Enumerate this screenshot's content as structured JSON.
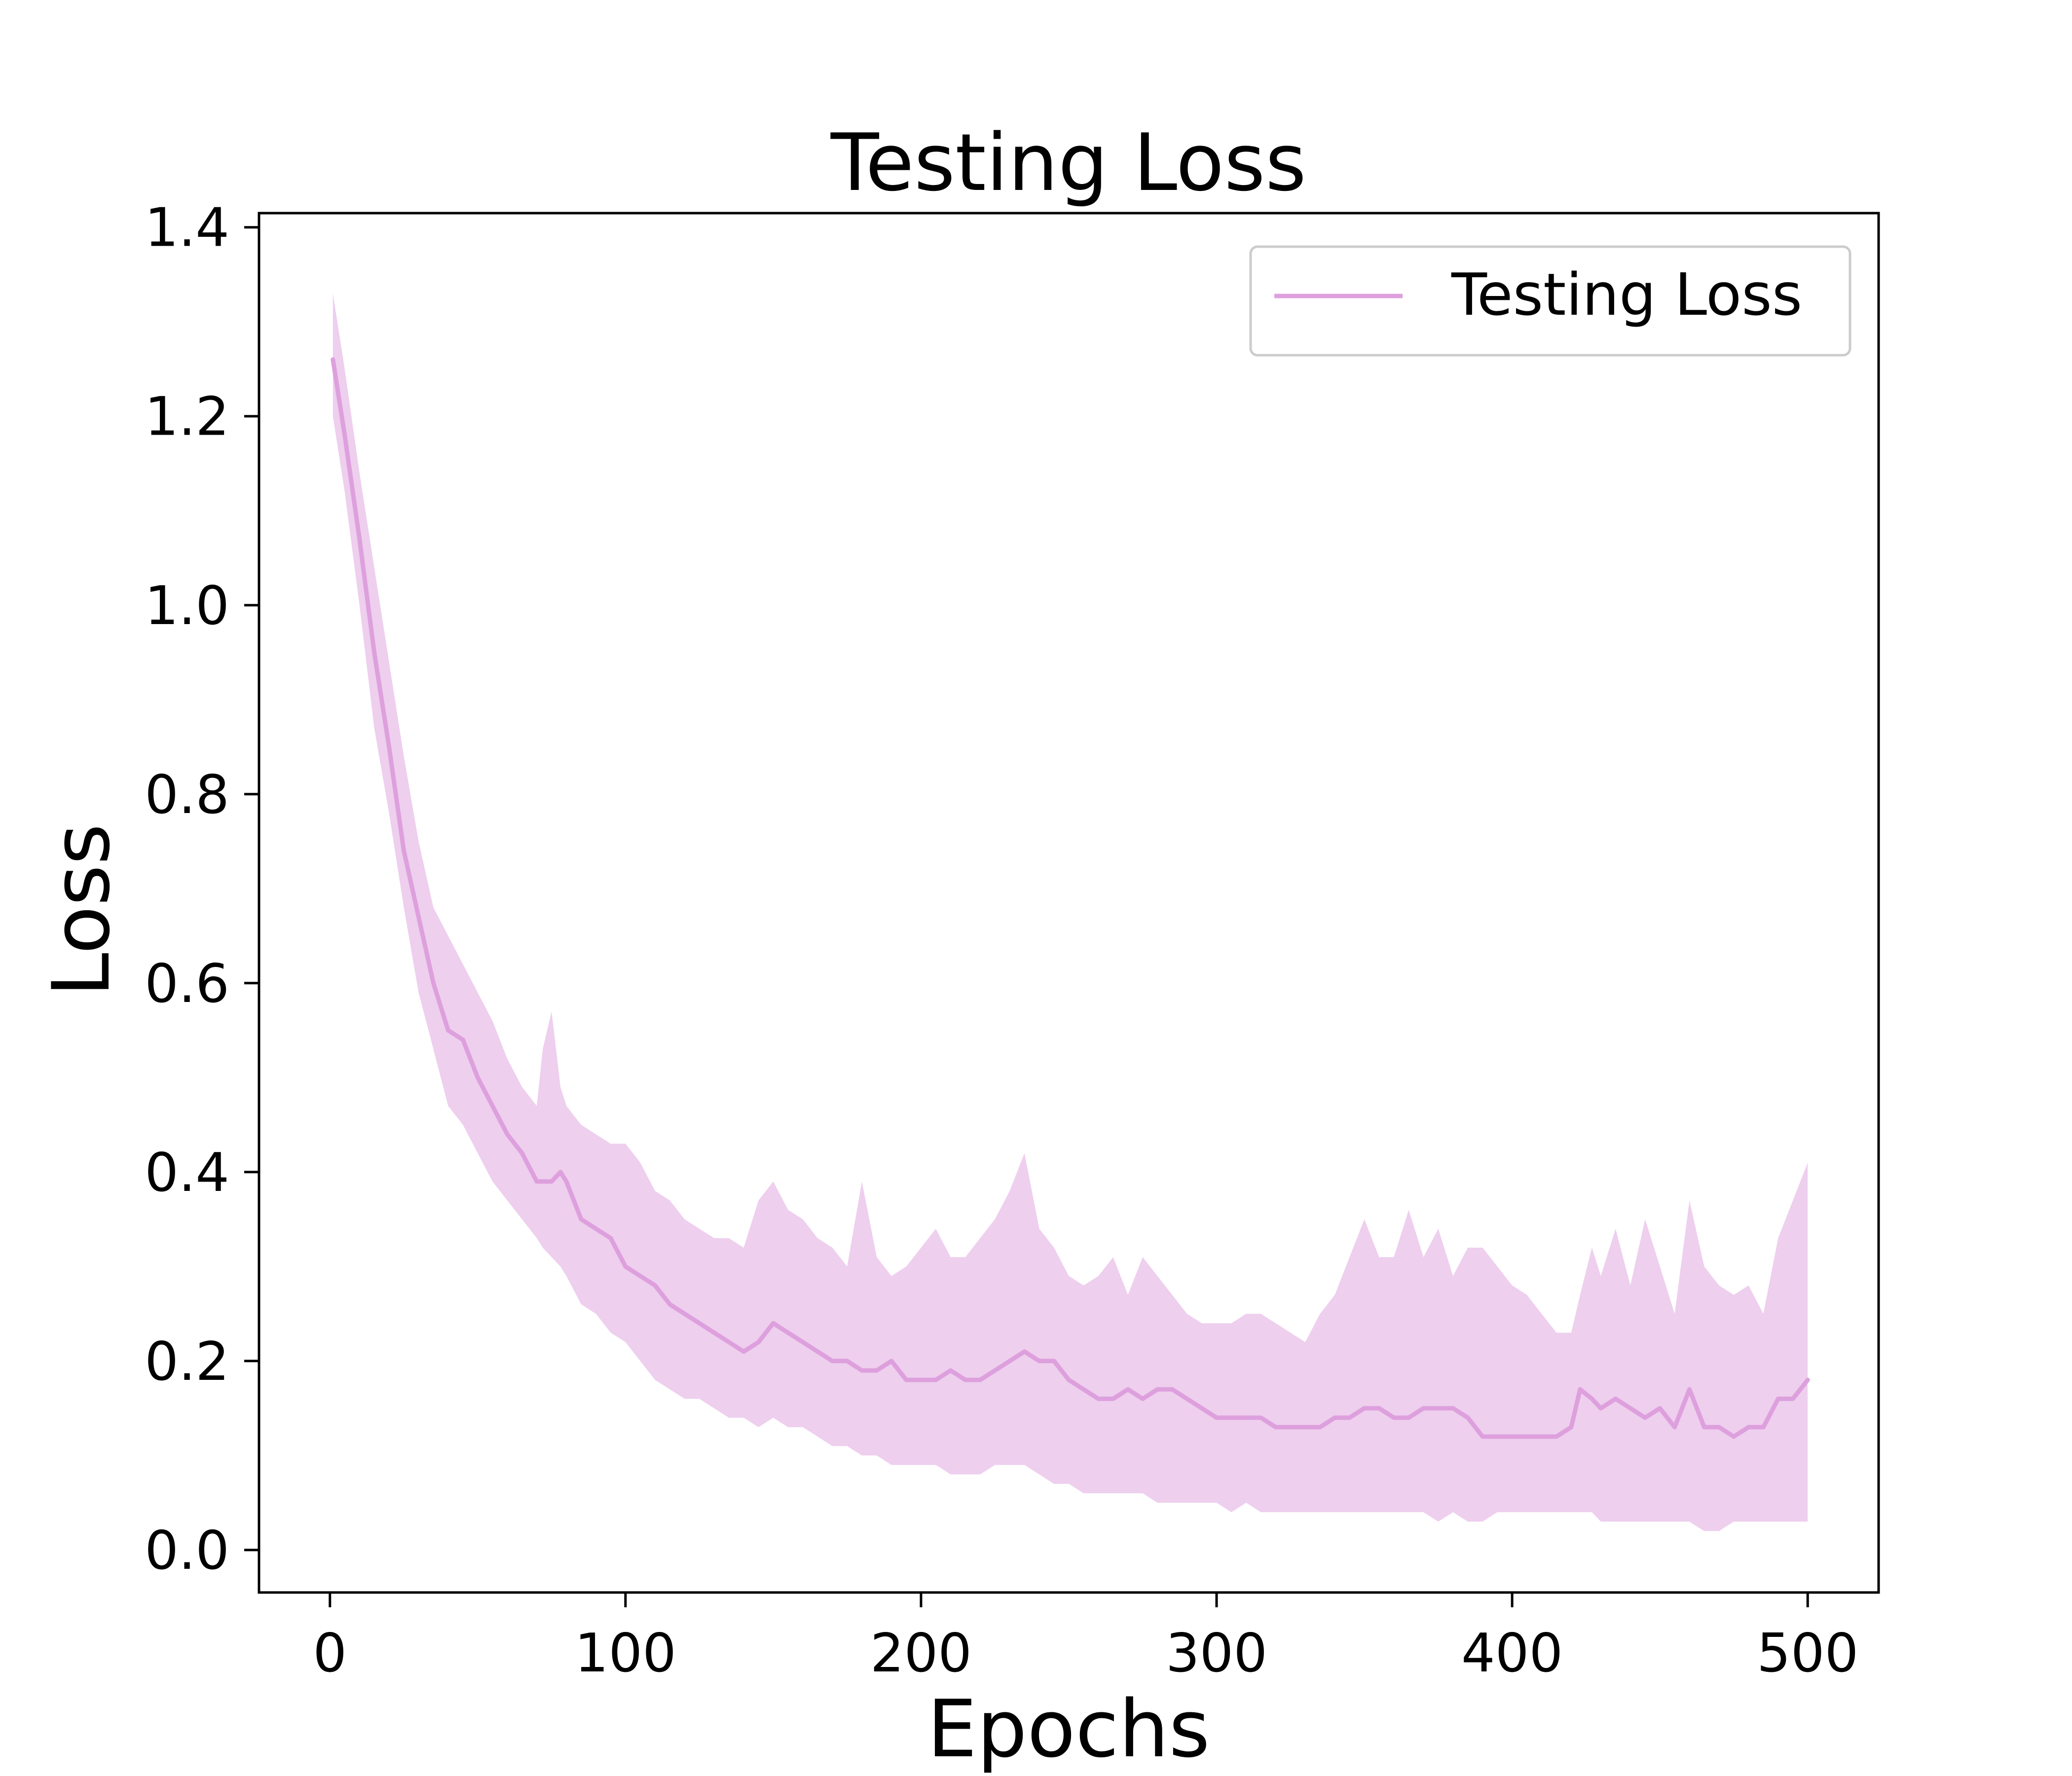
{
  "chart_data": {
    "type": "line",
    "title": "Testing Loss",
    "xlabel": "Epochs",
    "ylabel": "Loss",
    "xlim": [
      -24,
      524
    ],
    "ylim": [
      -0.045,
      1.415
    ],
    "xticks": [
      0,
      100,
      200,
      300,
      400,
      500
    ],
    "yticks": [
      0.0,
      0.2,
      0.4,
      0.6,
      0.8,
      1.0,
      1.2,
      1.4
    ],
    "xtick_labels": [
      "0",
      "100",
      "200",
      "300",
      "400",
      "500"
    ],
    "ytick_labels": [
      "0.0",
      "0.2",
      "0.4",
      "0.6",
      "0.8",
      "1.0",
      "1.2",
      "1.4"
    ],
    "grid": false,
    "legend_position": "top-right",
    "series": [
      {
        "name": "Testing Loss",
        "color": "#DDA0DD",
        "band_color": "#DDA0DD",
        "band_opacity": 0.5,
        "x": [
          1,
          5,
          10,
          15,
          20,
          25,
          30,
          35,
          40,
          45,
          50,
          55,
          60,
          65,
          70,
          72,
          75,
          78,
          80,
          85,
          90,
          95,
          100,
          105,
          110,
          115,
          120,
          125,
          130,
          135,
          140,
          145,
          150,
          155,
          160,
          165,
          170,
          175,
          180,
          185,
          190,
          195,
          200,
          205,
          210,
          215,
          220,
          225,
          230,
          235,
          240,
          245,
          250,
          255,
          260,
          265,
          270,
          275,
          280,
          285,
          290,
          295,
          300,
          305,
          310,
          315,
          320,
          325,
          330,
          335,
          340,
          345,
          350,
          355,
          360,
          365,
          370,
          375,
          380,
          385,
          390,
          395,
          400,
          405,
          410,
          415,
          420,
          423,
          427,
          430,
          435,
          440,
          445,
          450,
          455,
          460,
          465,
          470,
          475,
          480,
          485,
          490,
          495,
          500
        ],
        "y": [
          1.26,
          1.18,
          1.07,
          0.95,
          0.85,
          0.74,
          0.67,
          0.6,
          0.55,
          0.54,
          0.5,
          0.47,
          0.44,
          0.42,
          0.39,
          0.39,
          0.39,
          0.4,
          0.39,
          0.35,
          0.34,
          0.33,
          0.3,
          0.29,
          0.28,
          0.26,
          0.25,
          0.24,
          0.23,
          0.22,
          0.21,
          0.22,
          0.24,
          0.23,
          0.22,
          0.21,
          0.2,
          0.2,
          0.19,
          0.19,
          0.2,
          0.18,
          0.18,
          0.18,
          0.19,
          0.18,
          0.18,
          0.19,
          0.2,
          0.21,
          0.2,
          0.2,
          0.18,
          0.17,
          0.16,
          0.16,
          0.17,
          0.16,
          0.17,
          0.17,
          0.16,
          0.15,
          0.14,
          0.14,
          0.14,
          0.14,
          0.13,
          0.13,
          0.13,
          0.13,
          0.14,
          0.14,
          0.15,
          0.15,
          0.14,
          0.14,
          0.15,
          0.15,
          0.15,
          0.14,
          0.12,
          0.12,
          0.12,
          0.12,
          0.12,
          0.12,
          0.13,
          0.17,
          0.16,
          0.15,
          0.16,
          0.15,
          0.14,
          0.15,
          0.13,
          0.17,
          0.13,
          0.13,
          0.12,
          0.13,
          0.13,
          0.16,
          0.16,
          0.18
        ],
        "upper": [
          1.33,
          1.25,
          1.14,
          1.04,
          0.94,
          0.84,
          0.75,
          0.68,
          0.65,
          0.62,
          0.59,
          0.56,
          0.52,
          0.49,
          0.47,
          0.53,
          0.57,
          0.49,
          0.47,
          0.45,
          0.44,
          0.43,
          0.43,
          0.41,
          0.38,
          0.37,
          0.35,
          0.34,
          0.33,
          0.33,
          0.32,
          0.37,
          0.39,
          0.36,
          0.35,
          0.33,
          0.32,
          0.3,
          0.39,
          0.31,
          0.29,
          0.3,
          0.32,
          0.34,
          0.31,
          0.31,
          0.33,
          0.35,
          0.38,
          0.42,
          0.34,
          0.32,
          0.29,
          0.28,
          0.29,
          0.31,
          0.27,
          0.31,
          0.29,
          0.27,
          0.25,
          0.24,
          0.24,
          0.24,
          0.25,
          0.25,
          0.24,
          0.23,
          0.22,
          0.25,
          0.27,
          0.31,
          0.35,
          0.31,
          0.31,
          0.36,
          0.31,
          0.34,
          0.29,
          0.32,
          0.32,
          0.3,
          0.28,
          0.27,
          0.25,
          0.23,
          0.23,
          0.27,
          0.32,
          0.29,
          0.34,
          0.28,
          0.35,
          0.3,
          0.25,
          0.37,
          0.3,
          0.28,
          0.27,
          0.28,
          0.25,
          0.33,
          0.37,
          0.41
        ],
        "lower": [
          1.2,
          1.12,
          1.0,
          0.87,
          0.78,
          0.68,
          0.59,
          0.53,
          0.47,
          0.45,
          0.42,
          0.39,
          0.37,
          0.35,
          0.33,
          0.32,
          0.31,
          0.3,
          0.29,
          0.26,
          0.25,
          0.23,
          0.22,
          0.2,
          0.18,
          0.17,
          0.16,
          0.16,
          0.15,
          0.14,
          0.14,
          0.13,
          0.14,
          0.13,
          0.13,
          0.12,
          0.11,
          0.11,
          0.1,
          0.1,
          0.09,
          0.09,
          0.09,
          0.09,
          0.08,
          0.08,
          0.08,
          0.09,
          0.09,
          0.09,
          0.08,
          0.07,
          0.07,
          0.06,
          0.06,
          0.06,
          0.06,
          0.06,
          0.05,
          0.05,
          0.05,
          0.05,
          0.05,
          0.04,
          0.05,
          0.04,
          0.04,
          0.04,
          0.04,
          0.04,
          0.04,
          0.04,
          0.04,
          0.04,
          0.04,
          0.04,
          0.04,
          0.03,
          0.04,
          0.03,
          0.03,
          0.04,
          0.04,
          0.04,
          0.04,
          0.04,
          0.04,
          0.04,
          0.04,
          0.03,
          0.03,
          0.03,
          0.03,
          0.03,
          0.03,
          0.03,
          0.02,
          0.02,
          0.03,
          0.03,
          0.03,
          0.03,
          0.03,
          0.03
        ]
      }
    ]
  }
}
